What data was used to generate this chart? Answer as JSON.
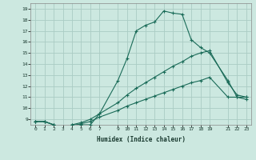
{
  "xlabel": "Humidex (Indice chaleur)",
  "bg_color": "#cce8e0",
  "line_color": "#1a6b58",
  "grid_color": "#aaccC4",
  "ylim": [
    8.5,
    19.5
  ],
  "xlim": [
    -0.5,
    23.5
  ],
  "yticks": [
    9,
    10,
    11,
    12,
    13,
    14,
    15,
    16,
    17,
    18,
    19
  ],
  "xtick_positions": [
    0,
    1,
    2,
    3,
    4,
    5,
    6,
    7,
    9,
    10,
    11,
    12,
    13,
    14,
    15,
    16,
    17,
    18,
    19,
    21,
    22,
    23
  ],
  "xtick_labels": [
    "0",
    "1",
    "2",
    "3",
    "4",
    "5",
    "6",
    "7",
    "9",
    "10",
    "11",
    "12",
    "13",
    "14",
    "15",
    "16",
    "17",
    "18",
    "19",
    "21",
    "22",
    "23"
  ],
  "line1_x": [
    0,
    1,
    2,
    3,
    4,
    5,
    6,
    7,
    9,
    10,
    11,
    12,
    13,
    14,
    15,
    16,
    17,
    18,
    19,
    21,
    22,
    23
  ],
  "line1_y": [
    8.8,
    8.8,
    8.5,
    8.0,
    8.5,
    8.5,
    8.5,
    9.5,
    12.5,
    14.5,
    17.0,
    17.5,
    17.8,
    18.8,
    18.6,
    18.5,
    16.2,
    15.5,
    15.0,
    12.5,
    11.0,
    10.8
  ],
  "line2_x": [
    0,
    1,
    2,
    3,
    4,
    5,
    6,
    7,
    9,
    10,
    11,
    12,
    13,
    14,
    15,
    16,
    17,
    18,
    19,
    21,
    22,
    23
  ],
  "line2_y": [
    8.8,
    8.8,
    8.5,
    8.3,
    8.5,
    8.7,
    9.0,
    9.5,
    10.5,
    11.2,
    11.8,
    12.3,
    12.8,
    13.3,
    13.8,
    14.2,
    14.7,
    15.0,
    15.2,
    12.3,
    11.2,
    11.0
  ],
  "line3_x": [
    0,
    1,
    2,
    3,
    4,
    5,
    6,
    7,
    9,
    10,
    11,
    12,
    13,
    14,
    15,
    16,
    17,
    18,
    19,
    21,
    22,
    23
  ],
  "line3_y": [
    8.8,
    8.8,
    8.5,
    8.2,
    8.4,
    8.6,
    8.8,
    9.2,
    9.8,
    10.2,
    10.5,
    10.8,
    11.1,
    11.4,
    11.7,
    12.0,
    12.3,
    12.5,
    12.8,
    11.0,
    11.0,
    11.0
  ]
}
